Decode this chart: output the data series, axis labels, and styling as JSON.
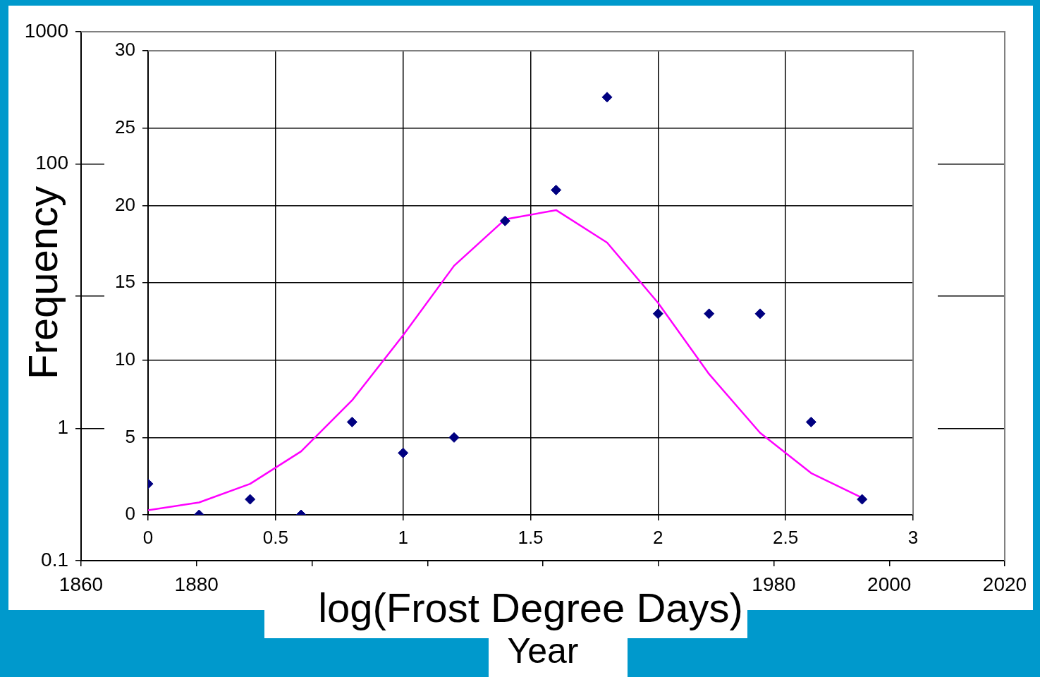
{
  "chart_data": [
    {
      "type": "scatter",
      "xlabel": "Year",
      "xlim": [
        1860,
        2020
      ],
      "xticks": [
        1860,
        1880,
        {
          "value": 1900,
          "label": null
        },
        {
          "value": 1920,
          "label": null
        },
        {
          "value": 1940,
          "label": null
        },
        {
          "value": 1960,
          "label": null
        },
        1980,
        2000,
        2020
      ],
      "ylim": [
        0.1,
        1000
      ],
      "yticks": [
        0.1,
        1,
        {
          "value": 10,
          "label": null
        },
        100,
        1000
      ],
      "log": "y",
      "grid": "y",
      "legend": false
    },
    {
      "type": "scatter",
      "xlabel": "log(Frost Degree Days)",
      "ylabel": "Frequency",
      "x": [
        0,
        0.2,
        0.4,
        0.6,
        0.8,
        1,
        1.2,
        1.4,
        1.6,
        1.8,
        2,
        2.2,
        2.4,
        2.6,
        2.8
      ],
      "xlim": [
        0,
        3
      ],
      "xticks": [
        0,
        0.5,
        1,
        1.5,
        2,
        2.5,
        3
      ],
      "ylim": [
        0,
        30
      ],
      "yticks": [
        0,
        5,
        10,
        15,
        20,
        25,
        30
      ],
      "grid": true,
      "legend": false,
      "marker": "diamond",
      "series": [
        {
          "type": "scatter",
          "color": "#000080",
          "values": [
            2,
            0,
            1,
            0,
            6,
            4,
            5,
            19,
            21,
            27,
            13,
            13,
            13,
            6,
            1
          ]
        },
        {
          "type": "line",
          "color": "#ff00ff",
          "marker": "none",
          "values": [
            0.3,
            0.8,
            2,
            4.1,
            7.4,
            11.6,
            16.1,
            19.1,
            19.7,
            17.6,
            13.7,
            9.1,
            5.3,
            2.7,
            1.1
          ]
        }
      ]
    }
  ]
}
